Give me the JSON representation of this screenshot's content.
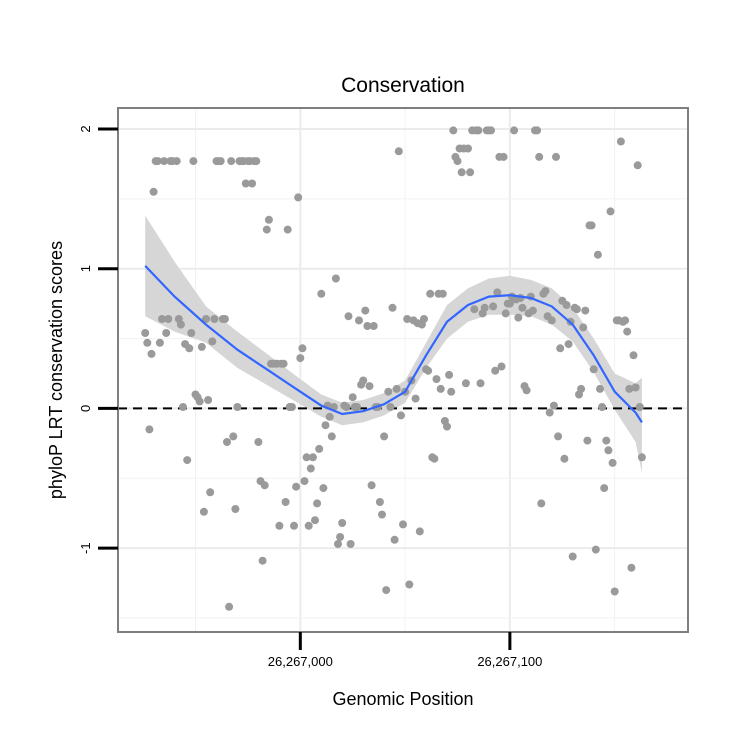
{
  "chart_data": {
    "type": "scatter",
    "title": "Conservation",
    "xlabel": "Genomic Position",
    "ylabel": "phyloP LRT conservation scores",
    "xlim": [
      26266913,
      26267185
    ],
    "ylim": [
      -1.6,
      2.15
    ],
    "x_ticks": [
      {
        "value": 26267000,
        "label": "26,267,000"
      },
      {
        "value": 26267100,
        "label": "26,267,100"
      }
    ],
    "y_ticks": [
      {
        "value": -1,
        "label": "-1"
      },
      {
        "value": 0,
        "label": "0"
      },
      {
        "value": 1,
        "label": "1"
      },
      {
        "value": 2,
        "label": "2"
      }
    ],
    "reference_line": {
      "y": 0,
      "style": "dashed"
    },
    "grid": true,
    "colors": {
      "points": "#9a9a9a",
      "smooth": "#3366ff",
      "band": "#d6d6d6",
      "panel_border": "#7f7f7f"
    },
    "points": [
      [
        26266926,
        0.54
      ],
      [
        26266927,
        0.47
      ],
      [
        26266928,
        -0.15
      ],
      [
        26266929,
        0.39
      ],
      [
        26266930,
        1.55
      ],
      [
        26266931,
        1.77
      ],
      [
        26266932,
        1.77
      ],
      [
        26266933,
        0.47
      ],
      [
        26266934,
        0.64
      ],
      [
        26266935,
        1.77
      ],
      [
        26266936,
        0.54
      ],
      [
        26266937,
        0.64
      ],
      [
        26266938,
        1.77
      ],
      [
        26266939,
        1.77
      ],
      [
        26266941,
        1.77
      ],
      [
        26266942,
        0.64
      ],
      [
        26266943,
        0.6
      ],
      [
        26266944,
        0.01
      ],
      [
        26266945,
        0.46
      ],
      [
        26266946,
        -0.37
      ],
      [
        26266947,
        0.43
      ],
      [
        26266948,
        0.54
      ],
      [
        26266949,
        1.77
      ],
      [
        26266950,
        0.1
      ],
      [
        26266951,
        0.08
      ],
      [
        26266952,
        0.05
      ],
      [
        26266953,
        0.44
      ],
      [
        26266954,
        -0.74
      ],
      [
        26266955,
        0.64
      ],
      [
        26266956,
        0.06
      ],
      [
        26266957,
        -0.6
      ],
      [
        26266958,
        0.48
      ],
      [
        26266959,
        0.64
      ],
      [
        26266960,
        1.77
      ],
      [
        26266961,
        1.77
      ],
      [
        26266962,
        1.77
      ],
      [
        26266963,
        0.64
      ],
      [
        26266964,
        0.64
      ],
      [
        26266965,
        -0.24
      ],
      [
        26266966,
        -1.42
      ],
      [
        26266967,
        1.77
      ],
      [
        26266968,
        -0.2
      ],
      [
        26266969,
        -0.72
      ],
      [
        26266970,
        0.01
      ],
      [
        26266971,
        1.77
      ],
      [
        26266972,
        1.77
      ],
      [
        26266973,
        1.77
      ],
      [
        26266974,
        1.61
      ],
      [
        26266975,
        1.77
      ],
      [
        26266976,
        1.77
      ],
      [
        26266977,
        1.61
      ],
      [
        26266978,
        1.77
      ],
      [
        26266979,
        1.77
      ],
      [
        26266980,
        -0.24
      ],
      [
        26266981,
        -0.52
      ],
      [
        26266982,
        -1.09
      ],
      [
        26266983,
        -0.55
      ],
      [
        26266984,
        1.28
      ],
      [
        26266985,
        1.35
      ],
      [
        26266986,
        0.32
      ],
      [
        26266987,
        0.32
      ],
      [
        26266988,
        0.32
      ],
      [
        26266989,
        0.32
      ],
      [
        26266990,
        -0.84
      ],
      [
        26266991,
        0.32
      ],
      [
        26266992,
        0.32
      ],
      [
        26266993,
        -0.67
      ],
      [
        26266994,
        1.28
      ],
      [
        26266995,
        0.01
      ],
      [
        26266996,
        0.01
      ],
      [
        26266997,
        -0.84
      ],
      [
        26266998,
        -0.56
      ],
      [
        26266999,
        1.51
      ],
      [
        26267000,
        0.36
      ],
      [
        26267001,
        0.43
      ],
      [
        26267002,
        -0.52
      ],
      [
        26267003,
        -0.35
      ],
      [
        26267004,
        -0.84
      ],
      [
        26267005,
        -0.43
      ],
      [
        26267006,
        -0.35
      ],
      [
        26267007,
        -0.8
      ],
      [
        26267008,
        -0.68
      ],
      [
        26267009,
        -0.29
      ],
      [
        26267010,
        0.82
      ],
      [
        26267011,
        -0.57
      ],
      [
        26267012,
        -0.12
      ],
      [
        26267013,
        0.02
      ],
      [
        26267014,
        -0.06
      ],
      [
        26267015,
        -0.2
      ],
      [
        26267016,
        0.01
      ],
      [
        26267017,
        0.93
      ],
      [
        26267018,
        -0.97
      ],
      [
        26267019,
        -0.92
      ],
      [
        26267020,
        -0.82
      ],
      [
        26267021,
        0.02
      ],
      [
        26267022,
        0.01
      ],
      [
        26267023,
        0.66
      ],
      [
        26267024,
        -0.97
      ],
      [
        26267025,
        0.08
      ],
      [
        26267026,
        0.01
      ],
      [
        26267027,
        0.01
      ],
      [
        26267028,
        0.63
      ],
      [
        26267029,
        0.17
      ],
      [
        26267030,
        0.2
      ],
      [
        26267031,
        0.7
      ],
      [
        26267032,
        0.59
      ],
      [
        26267033,
        0.16
      ],
      [
        26267034,
        -0.55
      ],
      [
        26267035,
        0.59
      ],
      [
        26267036,
        0.01
      ],
      [
        26267037,
        0.01
      ],
      [
        26267038,
        -0.67
      ],
      [
        26267039,
        -0.76
      ],
      [
        26267040,
        -0.2
      ],
      [
        26267041,
        -1.3
      ],
      [
        26267042,
        0.12
      ],
      [
        26267043,
        0.01
      ],
      [
        26267044,
        0.72
      ],
      [
        26267045,
        -0.94
      ],
      [
        26267046,
        0.14
      ],
      [
        26267047,
        1.84
      ],
      [
        26267048,
        -0.05
      ],
      [
        26267049,
        -0.83
      ],
      [
        26267050,
        0.12
      ],
      [
        26267051,
        0.64
      ],
      [
        26267052,
        -1.26
      ],
      [
        26267053,
        0.2
      ],
      [
        26267054,
        0.63
      ],
      [
        26267055,
        0.07
      ],
      [
        26267056,
        0.61
      ],
      [
        26267057,
        -0.88
      ],
      [
        26267058,
        0.6
      ],
      [
        26267059,
        0.64
      ],
      [
        26267060,
        0.28
      ],
      [
        26267061,
        0.27
      ],
      [
        26267062,
        0.82
      ],
      [
        26267063,
        -0.35
      ],
      [
        26267064,
        -0.36
      ],
      [
        26267065,
        0.21
      ],
      [
        26267066,
        0.82
      ],
      [
        26267067,
        0.14
      ],
      [
        26267068,
        0.82
      ],
      [
        26267069,
        -0.09
      ],
      [
        26267070,
        -0.13
      ],
      [
        26267071,
        0.24
      ],
      [
        26267072,
        0.12
      ],
      [
        26267073,
        1.99
      ],
      [
        26267074,
        1.8
      ],
      [
        26267075,
        1.77
      ],
      [
        26267076,
        1.86
      ],
      [
        26267077,
        1.69
      ],
      [
        26267078,
        1.86
      ],
      [
        26267079,
        0.18
      ],
      [
        26267080,
        1.86
      ],
      [
        26267081,
        1.69
      ],
      [
        26267082,
        1.99
      ],
      [
        26267083,
        0.71
      ],
      [
        26267084,
        1.99
      ],
      [
        26267085,
        1.99
      ],
      [
        26267086,
        0.18
      ],
      [
        26267087,
        0.68
      ],
      [
        26267088,
        0.72
      ],
      [
        26267089,
        1.99
      ],
      [
        26267090,
        1.99
      ],
      [
        26267091,
        1.99
      ],
      [
        26267092,
        0.73
      ],
      [
        26267093,
        0.27
      ],
      [
        26267094,
        0.83
      ],
      [
        26267095,
        1.8
      ],
      [
        26267096,
        0.3
      ],
      [
        26267097,
        1.8
      ],
      [
        26267098,
        0.68
      ],
      [
        26267099,
        0.75
      ],
      [
        26267100,
        0.75
      ],
      [
        26267101,
        0.8
      ],
      [
        26267102,
        1.99
      ],
      [
        26267103,
        0.78
      ],
      [
        26267104,
        0.65
      ],
      [
        26267105,
        0.79
      ],
      [
        26267106,
        0.72
      ],
      [
        26267107,
        0.16
      ],
      [
        26267108,
        0.13
      ],
      [
        26267109,
        0.68
      ],
      [
        26267110,
        0.8
      ],
      [
        26267111,
        0.7
      ],
      [
        26267112,
        1.99
      ],
      [
        26267113,
        1.99
      ],
      [
        26267114,
        1.8
      ],
      [
        26267115,
        -0.68
      ],
      [
        26267116,
        0.82
      ],
      [
        26267117,
        0.84
      ],
      [
        26267118,
        0.66
      ],
      [
        26267119,
        -0.03
      ],
      [
        26267120,
        0.63
      ],
      [
        26267121,
        0.02
      ],
      [
        26267122,
        1.8
      ],
      [
        26267123,
        -0.2
      ],
      [
        26267124,
        0.43
      ],
      [
        26267125,
        0.77
      ],
      [
        26267126,
        -0.36
      ],
      [
        26267127,
        0.74
      ],
      [
        26267128,
        0.46
      ],
      [
        26267129,
        0.62
      ],
      [
        26267130,
        -1.06
      ],
      [
        26267131,
        0.72
      ],
      [
        26267132,
        0.71
      ],
      [
        26267133,
        0.1
      ],
      [
        26267134,
        0.14
      ],
      [
        26267135,
        0.58
      ],
      [
        26267136,
        0.7
      ],
      [
        26267137,
        -0.23
      ],
      [
        26267138,
        1.31
      ],
      [
        26267139,
        1.31
      ],
      [
        26267140,
        0.28
      ],
      [
        26267141,
        -1.01
      ],
      [
        26267142,
        1.1
      ],
      [
        26267143,
        0.14
      ],
      [
        26267144,
        0.01
      ],
      [
        26267145,
        -0.57
      ],
      [
        26267146,
        -0.23
      ],
      [
        26267147,
        -0.3
      ],
      [
        26267148,
        1.41
      ],
      [
        26267149,
        -0.39
      ],
      [
        26267150,
        -1.31
      ],
      [
        26267151,
        0.63
      ],
      [
        26267152,
        0.63
      ],
      [
        26267153,
        1.91
      ],
      [
        26267154,
        0.62
      ],
      [
        26267155,
        0.63
      ],
      [
        26267156,
        0.55
      ],
      [
        26267157,
        0.14
      ],
      [
        26267158,
        -1.14
      ],
      [
        26267159,
        0.38
      ],
      [
        26267160,
        0.15
      ],
      [
        26267161,
        1.74
      ],
      [
        26267162,
        0.01
      ],
      [
        26267163,
        -0.35
      ]
    ],
    "smooth": {
      "x": [
        26266926,
        26266940,
        26266955,
        26266970,
        26266985,
        26267000,
        26267010,
        26267020,
        26267030,
        26267040,
        26267050,
        26267060,
        26267070,
        26267080,
        26267090,
        26267100,
        26267110,
        26267120,
        26267130,
        26267140,
        26267150,
        26267160,
        26267163
      ],
      "y": [
        1.02,
        0.8,
        0.6,
        0.42,
        0.27,
        0.12,
        0.02,
        -0.04,
        -0.02,
        0.03,
        0.12,
        0.38,
        0.62,
        0.74,
        0.8,
        0.81,
        0.79,
        0.73,
        0.6,
        0.38,
        0.12,
        -0.03,
        -0.1
      ],
      "upper": [
        1.38,
        1.05,
        0.73,
        0.55,
        0.38,
        0.21,
        0.1,
        0.04,
        0.06,
        0.11,
        0.2,
        0.47,
        0.74,
        0.86,
        0.93,
        0.95,
        0.92,
        0.86,
        0.72,
        0.5,
        0.25,
        0.18,
        0.22
      ],
      "lower": [
        0.66,
        0.55,
        0.47,
        0.29,
        0.16,
        0.03,
        -0.06,
        -0.12,
        -0.1,
        -0.05,
        0.04,
        0.29,
        0.5,
        0.62,
        0.67,
        0.67,
        0.66,
        0.6,
        0.48,
        0.26,
        -0.01,
        -0.24,
        -0.46
      ]
    }
  }
}
